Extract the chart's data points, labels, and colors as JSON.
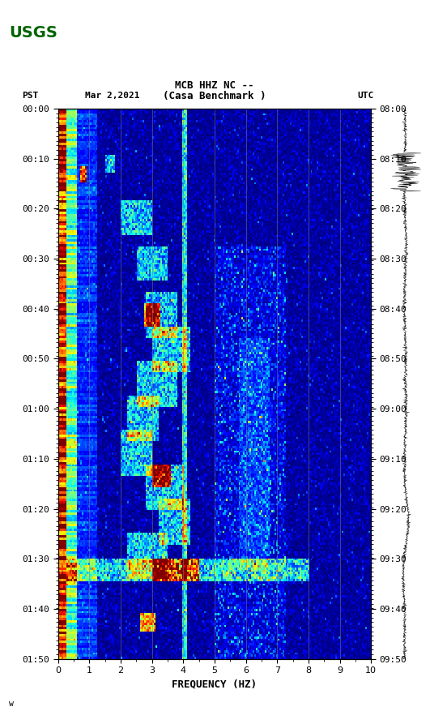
{
  "title_line1": "MCB HHZ NC --",
  "title_line2": "(Casa Benchmark )",
  "date_label": "Mar 2,2021",
  "left_tz": "PST",
  "right_tz": "UTC",
  "left_times": [
    "00:00",
    "00:10",
    "00:20",
    "00:30",
    "00:40",
    "00:50",
    "01:00",
    "01:10",
    "01:20",
    "01:30",
    "01:40",
    "01:50"
  ],
  "right_times": [
    "08:00",
    "08:10",
    "08:20",
    "08:30",
    "08:40",
    "08:50",
    "09:00",
    "09:10",
    "09:20",
    "09:30",
    "09:40",
    "09:50"
  ],
  "xlabel": "FREQUENCY (HZ)",
  "freq_min": 0,
  "freq_max": 10,
  "freq_ticks": [
    0,
    1,
    2,
    3,
    4,
    5,
    6,
    7,
    8,
    9,
    10
  ],
  "vertical_lines": [
    1,
    2,
    3,
    4,
    5,
    6,
    7,
    8,
    9
  ],
  "bg_color": "white",
  "spectrogram_bg": "#000080",
  "n_freq": 200,
  "n_time": 240
}
